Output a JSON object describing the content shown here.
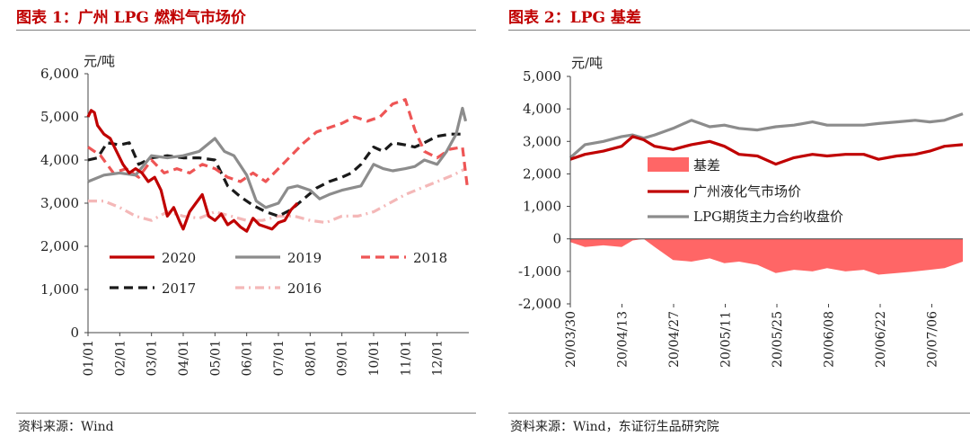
{
  "left_panel": {
    "title": "图表 1：广州 LPG 燃料气市场价",
    "source": "资料来源：Wind"
  },
  "right_panel": {
    "title": "图表 2：LPG 基差",
    "source": "资料来源：Wind，东证衍生品研究院"
  },
  "chart_data": [
    {
      "type": "line",
      "title": "图表 1：广州 LPG 燃料气市场价",
      "ylabel": "元/吨",
      "ylim": [
        0,
        6000
      ],
      "yticks": [
        0,
        1000,
        2000,
        3000,
        4000,
        5000,
        6000
      ],
      "ytick_labels": [
        "0",
        "1,000",
        "2,000",
        "3,000",
        "4,000",
        "5,000",
        "6,000"
      ],
      "xlim": [
        1,
        13
      ],
      "xticks": [
        1,
        2,
        3,
        4,
        5,
        6,
        7,
        8,
        9,
        10,
        11,
        12
      ],
      "xtick_labels": [
        "01/01",
        "02/01",
        "03/01",
        "04/01",
        "05/01",
        "06/01",
        "07/01",
        "08/01",
        "09/01",
        "10/01",
        "11/01",
        "12/01"
      ],
      "grid": false,
      "legend_position": "inside-bottom",
      "series": [
        {
          "name": "2020",
          "color": "#c00000",
          "dash": "solid",
          "x": [
            1,
            1.1,
            1.2,
            1.3,
            1.5,
            1.7,
            1.9,
            2.1,
            2.3,
            2.5,
            2.7,
            2.9,
            3.1,
            3.3,
            3.5,
            3.7,
            3.9,
            4.0,
            4.2,
            4.4,
            4.6,
            4.8,
            5.0,
            5.2,
            5.4,
            5.6,
            5.8,
            6.0,
            6.2,
            6.4,
            6.6,
            6.8,
            7.0,
            7.2,
            7.4,
            7.6
          ],
          "y": [
            5000,
            5150,
            5100,
            4800,
            4600,
            4500,
            4200,
            3900,
            3700,
            3800,
            3700,
            3500,
            3600,
            3300,
            2700,
            2900,
            2550,
            2400,
            2800,
            3000,
            3200,
            2700,
            2600,
            2750,
            2500,
            2600,
            2450,
            2350,
            2650,
            2500,
            2450,
            2400,
            2550,
            2600,
            2850,
            3000
          ]
        },
        {
          "name": "2019",
          "color": "#8c8c8c",
          "dash": "solid",
          "x": [
            1,
            1.5,
            2,
            2.5,
            3,
            3.5,
            4,
            4.5,
            5,
            5.3,
            5.6,
            6,
            6.3,
            6.6,
            7,
            7.3,
            7.6,
            8,
            8.3,
            8.6,
            9,
            9.3,
            9.6,
            10,
            10.3,
            10.6,
            11,
            11.3,
            11.6,
            12,
            12.3,
            12.6,
            12.8,
            12.9
          ],
          "y": [
            3500,
            3650,
            3700,
            3650,
            4100,
            4050,
            4100,
            4200,
            4500,
            4200,
            4100,
            3650,
            3050,
            2900,
            3000,
            3350,
            3400,
            3300,
            3100,
            3200,
            3300,
            3350,
            3400,
            3900,
            3800,
            3750,
            3800,
            3850,
            4000,
            3900,
            4200,
            4600,
            5200,
            4900
          ]
        },
        {
          "name": "2018",
          "color": "#ee5555",
          "dash": "dashed",
          "x": [
            1,
            1.4,
            1.8,
            2.2,
            2.6,
            3,
            3.4,
            3.8,
            4.2,
            4.6,
            5,
            5.4,
            5.8,
            6.2,
            6.6,
            7,
            7.4,
            7.8,
            8.2,
            8.6,
            9,
            9.4,
            9.8,
            10.2,
            10.6,
            11,
            11.3,
            11.6,
            12,
            12.4,
            12.8,
            12.95
          ],
          "y": [
            4300,
            4100,
            3700,
            3800,
            3600,
            4000,
            3700,
            3800,
            3700,
            3900,
            3800,
            3600,
            3500,
            3700,
            3500,
            3800,
            4100,
            4400,
            4650,
            4750,
            4850,
            5000,
            4900,
            5000,
            5300,
            5400,
            4700,
            4200,
            4050,
            4250,
            4300,
            3400
          ]
        },
        {
          "name": "2017",
          "color": "#1a1a1a",
          "dash": "dashed",
          "x": [
            1,
            1.3,
            1.6,
            2,
            2.3,
            2.6,
            3,
            3.5,
            4,
            4.5,
            5,
            5.4,
            5.8,
            6.2,
            6.6,
            7,
            7.4,
            7.8,
            8.2,
            8.6,
            9,
            9.3,
            9.6,
            10,
            10.3,
            10.6,
            11,
            11.3,
            11.6,
            12,
            12.4,
            12.9
          ],
          "y": [
            4000,
            4050,
            4400,
            4350,
            4400,
            3900,
            4050,
            4100,
            4050,
            4050,
            4000,
            3400,
            3150,
            2950,
            2800,
            2700,
            2850,
            3100,
            3350,
            3500,
            3600,
            3700,
            3900,
            4300,
            4200,
            4400,
            4350,
            4300,
            4400,
            4550,
            4600,
            4600
          ]
        },
        {
          "name": "2016",
          "color": "#f4b8b8",
          "dash": "dashdot",
          "x": [
            1,
            1.5,
            2,
            2.5,
            3,
            3.5,
            4,
            4.5,
            5,
            5.5,
            6,
            6.5,
            7,
            7.5,
            8,
            8.5,
            9,
            9.5,
            10,
            10.5,
            11,
            11.5,
            12,
            12.5,
            12.9
          ],
          "y": [
            3050,
            3050,
            2900,
            2700,
            2600,
            2800,
            2700,
            2650,
            2800,
            2700,
            2600,
            2600,
            2700,
            2700,
            2600,
            2550,
            2700,
            2700,
            2800,
            3000,
            3200,
            3350,
            3500,
            3650,
            3800
          ]
        }
      ]
    },
    {
      "type": "line",
      "title": "图表 2：LPG 基差",
      "ylabel": "元/吨",
      "ylim": [
        -2000,
        5000
      ],
      "yticks": [
        -2000,
        -1000,
        0,
        1000,
        2000,
        3000,
        4000,
        5000
      ],
      "ytick_labels": [
        "-2,000",
        "-1,000",
        "0",
        "1,000",
        "2,000",
        "3,000",
        "4,000",
        "5,000"
      ],
      "xlim": [
        "2020-03-30",
        "2020-07-15"
      ],
      "xtick_labels": [
        "20/03/30",
        "20/04/13",
        "20/04/27",
        "20/05/11",
        "20/05/25",
        "20/06/08",
        "20/06/22",
        "20/07/06"
      ],
      "grid": false,
      "legend_position": "inside-middle",
      "series": [
        {
          "name": "基差",
          "type": "area",
          "color": "#ff6666",
          "x": [
            "2020-03-30",
            "2020-04-03",
            "2020-04-08",
            "2020-04-13",
            "2020-04-16",
            "2020-04-19",
            "2020-04-22",
            "2020-04-27",
            "2020-05-02",
            "2020-05-07",
            "2020-05-11",
            "2020-05-15",
            "2020-05-20",
            "2020-05-25",
            "2020-05-30",
            "2020-06-04",
            "2020-06-08",
            "2020-06-13",
            "2020-06-18",
            "2020-06-22",
            "2020-06-27",
            "2020-07-02",
            "2020-07-06",
            "2020-07-10",
            "2020-07-15"
          ],
          "y": [
            -100,
            -250,
            -200,
            -250,
            -50,
            0,
            -250,
            -650,
            -700,
            -600,
            -750,
            -700,
            -800,
            -1050,
            -950,
            -1000,
            -900,
            -1000,
            -950,
            -1100,
            -1050,
            -1000,
            -950,
            -900,
            -700
          ]
        },
        {
          "name": "广州液化气市场价",
          "type": "line",
          "color": "#c00000",
          "x": [
            "2020-03-30",
            "2020-04-03",
            "2020-04-08",
            "2020-04-13",
            "2020-04-16",
            "2020-04-19",
            "2020-04-22",
            "2020-04-27",
            "2020-05-02",
            "2020-05-07",
            "2020-05-11",
            "2020-05-15",
            "2020-05-20",
            "2020-05-25",
            "2020-05-30",
            "2020-06-04",
            "2020-06-08",
            "2020-06-13",
            "2020-06-18",
            "2020-06-22",
            "2020-06-27",
            "2020-07-02",
            "2020-07-06",
            "2020-07-10",
            "2020-07-15"
          ],
          "y": [
            2450,
            2600,
            2700,
            2850,
            3150,
            3050,
            2850,
            2750,
            2900,
            3000,
            2850,
            2600,
            2550,
            2300,
            2500,
            2600,
            2550,
            2600,
            2600,
            2450,
            2550,
            2600,
            2700,
            2850,
            2900
          ]
        },
        {
          "name": "LPG期货主力合约收盘价",
          "type": "line",
          "color": "#8c8c8c",
          "x": [
            "2020-03-30",
            "2020-04-03",
            "2020-04-08",
            "2020-04-13",
            "2020-04-16",
            "2020-04-19",
            "2020-04-22",
            "2020-04-27",
            "2020-05-02",
            "2020-05-07",
            "2020-05-11",
            "2020-05-15",
            "2020-05-20",
            "2020-05-25",
            "2020-05-30",
            "2020-06-04",
            "2020-06-08",
            "2020-06-13",
            "2020-06-18",
            "2020-06-22",
            "2020-06-27",
            "2020-07-02",
            "2020-07-06",
            "2020-07-10",
            "2020-07-15"
          ],
          "y": [
            2500,
            2900,
            3000,
            3150,
            3200,
            3100,
            3200,
            3400,
            3650,
            3450,
            3500,
            3400,
            3350,
            3450,
            3500,
            3600,
            3500,
            3500,
            3500,
            3550,
            3600,
            3650,
            3600,
            3650,
            3850
          ]
        }
      ]
    }
  ]
}
